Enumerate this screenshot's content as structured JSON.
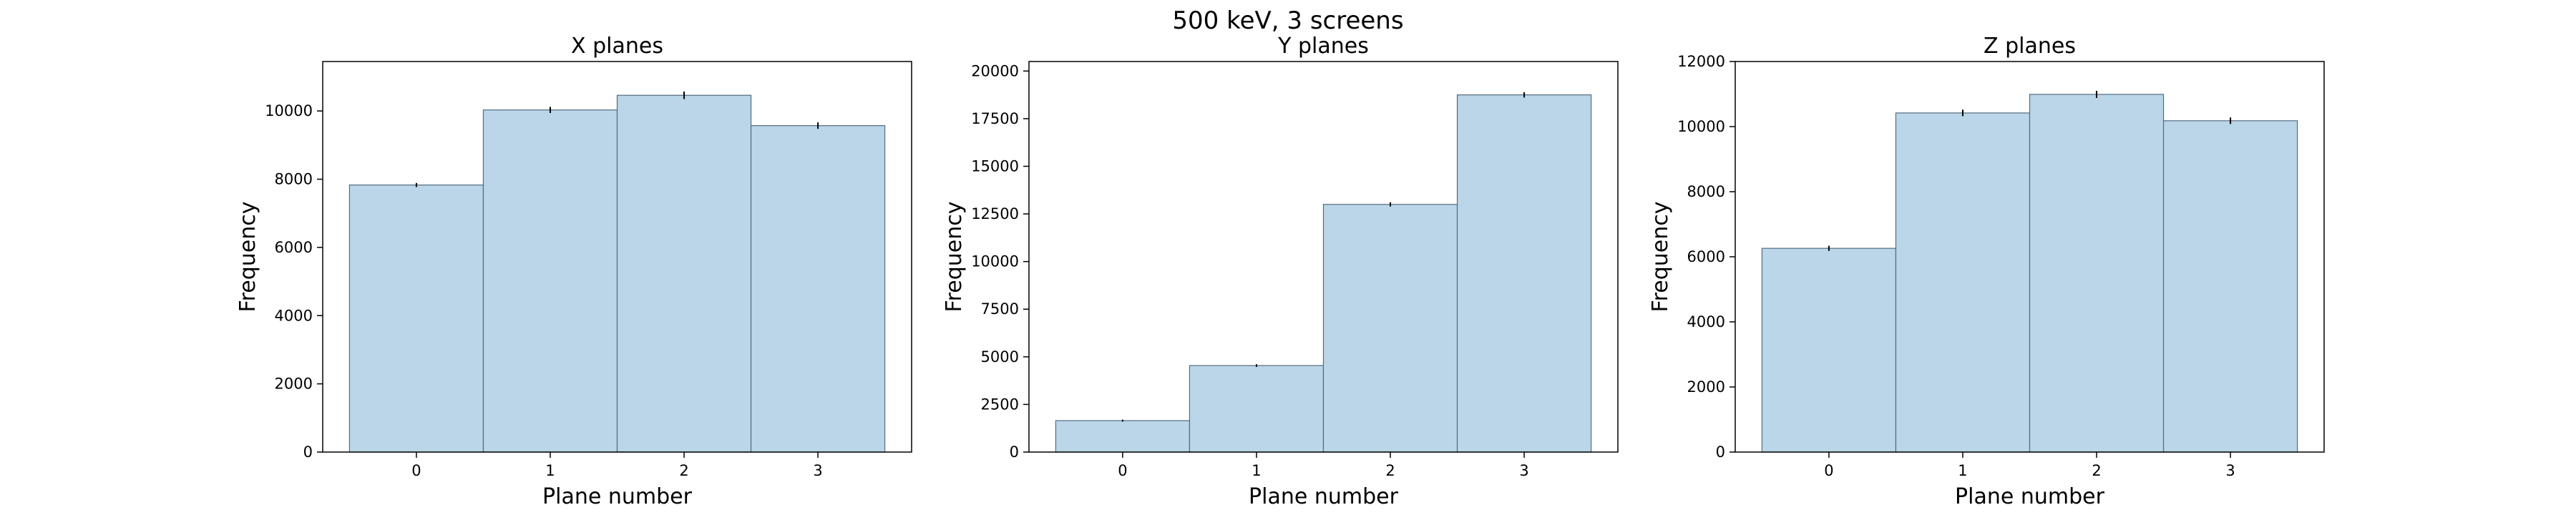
{
  "figure": {
    "suptitle": "500 keV, 3 screens"
  },
  "chart_data": [
    {
      "type": "bar",
      "title": "X planes",
      "xlabel": "Plane number",
      "ylabel": "Frequency",
      "categories": [
        "0",
        "1",
        "2",
        "3"
      ],
      "values": [
        7830,
        10030,
        10460,
        9570
      ],
      "errors": [
        60,
        90,
        110,
        95
      ],
      "ylim": [
        0,
        11450
      ],
      "yticks": [
        0,
        2000,
        4000,
        6000,
        8000,
        10000
      ],
      "ytick_labels": [
        "0",
        "2000",
        "4000",
        "6000",
        "8000",
        "10000"
      ],
      "grid": false,
      "bar_color": "#bad6e8",
      "edge_color": "#556b7f",
      "error_color": "#000000"
    },
    {
      "type": "bar",
      "title": "Y planes",
      "xlabel": "Plane number",
      "ylabel": "Frequency",
      "categories": [
        "0",
        "1",
        "2",
        "3"
      ],
      "values": [
        1650,
        4540,
        13000,
        18750
      ],
      "errors": [
        50,
        70,
        110,
        140
      ],
      "ylim": [
        0,
        20500
      ],
      "yticks": [
        0,
        2500,
        5000,
        7500,
        10000,
        12500,
        15000,
        17500,
        20000
      ],
      "ytick_labels": [
        "0",
        "2500",
        "5000",
        "7500",
        "10000",
        "12500",
        "15000",
        "17500",
        "20000"
      ],
      "grid": false,
      "bar_color": "#bad6e8",
      "edge_color": "#556b7f",
      "error_color": "#000000"
    },
    {
      "type": "bar",
      "title": "Z planes",
      "xlabel": "Plane number",
      "ylabel": "Frequency",
      "categories": [
        "0",
        "1",
        "2",
        "3"
      ],
      "values": [
        6260,
        10420,
        10990,
        10180
      ],
      "errors": [
        80,
        100,
        110,
        100
      ],
      "ylim": [
        0,
        12000
      ],
      "yticks": [
        0,
        2000,
        4000,
        6000,
        8000,
        10000,
        12000
      ],
      "ytick_labels": [
        "0",
        "2000",
        "4000",
        "6000",
        "8000",
        "10000",
        "12000"
      ],
      "grid": false,
      "bar_color": "#bad6e8",
      "edge_color": "#556b7f",
      "error_color": "#000000"
    }
  ]
}
